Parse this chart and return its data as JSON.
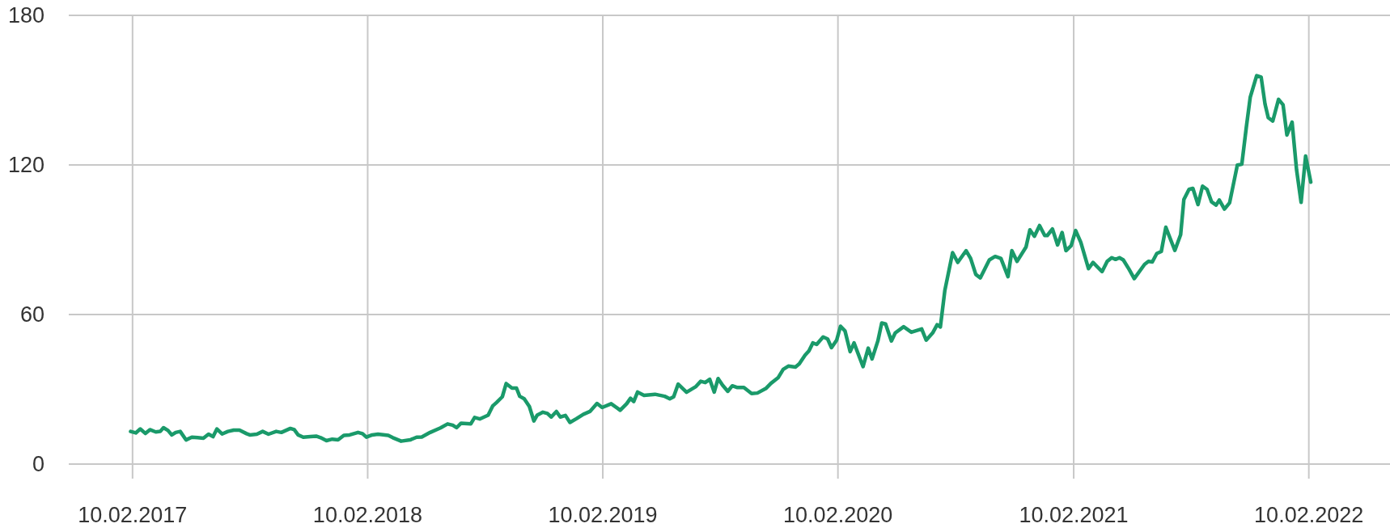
{
  "chart_data": {
    "type": "line",
    "xlim": [
      "2016-11-03",
      "2022-06-16"
    ],
    "ylim": [
      0,
      180
    ],
    "yticks": [
      0,
      60,
      120,
      180
    ],
    "xticks": [
      {
        "value": "2017-02-10",
        "label": "10.02.2017"
      },
      {
        "value": "2018-02-10",
        "label": "10.02.2018"
      },
      {
        "value": "2019-02-10",
        "label": "10.02.2019"
      },
      {
        "value": "2020-02-10",
        "label": "10.02.2020"
      },
      {
        "value": "2021-02-10",
        "label": "10.02.2021"
      },
      {
        "value": "2022-02-10",
        "label": "10.02.2022"
      }
    ],
    "grid": true,
    "marker": "none",
    "line_style": "solid",
    "series": [
      {
        "color": "#1a9a6a",
        "x": [
          "2017-02-07",
          "2017-02-15",
          "2017-02-22",
          "2017-03-02",
          "2017-03-09",
          "2017-03-18",
          "2017-03-25",
          "2017-03-30",
          "2017-04-06",
          "2017-04-12",
          "2017-04-18",
          "2017-04-25",
          "2017-05-04",
          "2017-05-13",
          "2017-05-22",
          "2017-05-31",
          "2017-06-08",
          "2017-06-15",
          "2017-06-21",
          "2017-06-29",
          "2017-07-08",
          "2017-07-17",
          "2017-07-26",
          "2017-08-06",
          "2017-08-11",
          "2017-08-22",
          "2017-08-31",
          "2017-09-09",
          "2017-09-21",
          "2017-09-29",
          "2017-10-06",
          "2017-10-13",
          "2017-10-19",
          "2017-10-25",
          "2017-11-02",
          "2017-11-13",
          "2017-11-22",
          "2017-11-29",
          "2017-12-08",
          "2017-12-17",
          "2017-12-26",
          "2018-01-04",
          "2018-01-13",
          "2018-01-26",
          "2018-02-02",
          "2018-02-08",
          "2018-02-17",
          "2018-02-26",
          "2018-03-14",
          "2018-03-21",
          "2018-04-03",
          "2018-04-17",
          "2018-04-27",
          "2018-05-05",
          "2018-05-18",
          "2018-06-03",
          "2018-06-14",
          "2018-06-22",
          "2018-06-28",
          "2018-07-05",
          "2018-07-20",
          "2018-07-26",
          "2018-08-03",
          "2018-08-16",
          "2018-08-23",
          "2018-08-29",
          "2018-09-07",
          "2018-09-13",
          "2018-09-22",
          "2018-09-29",
          "2018-10-04",
          "2018-10-11",
          "2018-10-19",
          "2018-10-26",
          "2018-10-31",
          "2018-11-09",
          "2018-11-16",
          "2018-11-22",
          "2018-11-30",
          "2018-12-06",
          "2018-12-14",
          "2018-12-21",
          "2018-12-31",
          "2019-01-11",
          "2019-01-21",
          "2019-02-01",
          "2019-02-09",
          "2019-02-23",
          "2019-03-09",
          "2019-03-19",
          "2019-03-25",
          "2019-03-30",
          "2019-04-05",
          "2019-04-15",
          "2019-05-02",
          "2019-05-17",
          "2019-05-25",
          "2019-05-31",
          "2019-06-07",
          "2019-06-20",
          "2019-07-04",
          "2019-07-12",
          "2019-07-19",
          "2019-07-26",
          "2019-08-02",
          "2019-08-08",
          "2019-08-15",
          "2019-08-23",
          "2019-08-30",
          "2019-09-07",
          "2019-09-17",
          "2019-09-29",
          "2019-10-08",
          "2019-10-21",
          "2019-10-29",
          "2019-11-09",
          "2019-11-17",
          "2019-11-25",
          "2019-12-06",
          "2019-12-12",
          "2019-12-21",
          "2019-12-27",
          "2020-01-02",
          "2020-01-08",
          "2020-01-18",
          "2020-01-25",
          "2020-01-31",
          "2020-02-08",
          "2020-02-14",
          "2020-02-21",
          "2020-02-29",
          "2020-03-06",
          "2020-03-20",
          "2020-03-28",
          "2020-04-03",
          "2020-04-12",
          "2020-04-18",
          "2020-04-24",
          "2020-05-03",
          "2020-05-09",
          "2020-05-22",
          "2020-06-03",
          "2020-06-19",
          "2020-06-26",
          "2020-07-06",
          "2020-07-13",
          "2020-07-18",
          "2020-07-25",
          "2020-08-06",
          "2020-08-14",
          "2020-08-27",
          "2020-09-03",
          "2020-09-11",
          "2020-09-18",
          "2020-10-02",
          "2020-10-11",
          "2020-10-20",
          "2020-10-31",
          "2020-11-06",
          "2020-11-14",
          "2020-11-28",
          "2020-12-04",
          "2020-12-11",
          "2020-12-19",
          "2020-12-27",
          "2020-12-31",
          "2021-01-08",
          "2021-01-16",
          "2021-01-23",
          "2021-01-29",
          "2021-02-06",
          "2021-02-13",
          "2021-02-21",
          "2021-03-05",
          "2021-03-12",
          "2021-03-26",
          "2021-04-03",
          "2021-04-10",
          "2021-04-16",
          "2021-04-22",
          "2021-04-28",
          "2021-05-07",
          "2021-05-15",
          "2021-05-31",
          "2021-06-06",
          "2021-06-12",
          "2021-06-19",
          "2021-06-26",
          "2021-07-03",
          "2021-07-17",
          "2021-07-26",
          "2021-07-31",
          "2021-08-08",
          "2021-08-14",
          "2021-08-22",
          "2021-08-29",
          "2021-09-05",
          "2021-09-12",
          "2021-09-19",
          "2021-09-24",
          "2021-10-02",
          "2021-10-10",
          "2021-10-22",
          "2021-10-29",
          "2021-11-05",
          "2021-11-11",
          "2021-11-21",
          "2021-11-28",
          "2021-12-04",
          "2021-12-09",
          "2021-12-16",
          "2021-12-25",
          "2022-01-01",
          "2022-01-07",
          "2022-01-15",
          "2022-01-22",
          "2022-01-29",
          "2022-02-05",
          "2022-02-13"
        ],
        "values": [
          13.1,
          12.5,
          14.1,
          12.3,
          13.8,
          12.9,
          13.1,
          14.6,
          13.5,
          11.7,
          12.7,
          13.1,
          9.7,
          10.8,
          10.6,
          10.4,
          12.0,
          11.0,
          14.1,
          12.1,
          13.1,
          13.6,
          13.6,
          12.2,
          11.7,
          12.0,
          13.1,
          12.0,
          13.1,
          12.7,
          13.5,
          14.3,
          13.8,
          11.7,
          10.8,
          11.0,
          11.2,
          10.6,
          9.4,
          10.0,
          9.7,
          11.5,
          11.7,
          12.7,
          12.2,
          10.8,
          11.7,
          12.0,
          11.5,
          10.6,
          9.2,
          9.7,
          10.8,
          10.9,
          12.7,
          14.5,
          16.1,
          15.6,
          14.6,
          16.4,
          16.1,
          18.7,
          18.1,
          19.6,
          23.3,
          24.7,
          27.0,
          32.3,
          30.5,
          30.5,
          27.2,
          26.2,
          23.1,
          17.3,
          19.6,
          20.8,
          20.3,
          18.9,
          21.1,
          18.9,
          19.5,
          16.7,
          18.2,
          20.0,
          21.1,
          24.3,
          22.7,
          24.2,
          21.6,
          24.2,
          26.4,
          25.1,
          28.9,
          27.6,
          28.0,
          27.2,
          26.2,
          27.0,
          32.1,
          28.8,
          31.0,
          33.2,
          32.7,
          34.0,
          28.9,
          34.3,
          31.6,
          29.2,
          31.4,
          30.7,
          30.7,
          28.3,
          28.5,
          30.3,
          32.4,
          34.6,
          38.0,
          39.3,
          38.9,
          40.2,
          43.7,
          45.4,
          48.6,
          48.0,
          51.0,
          50.2,
          46.7,
          49.7,
          55.3,
          53.4,
          45.1,
          48.6,
          39.1,
          46.5,
          42.2,
          49.4,
          56.6,
          56.2,
          49.4,
          52.6,
          55.1,
          52.9,
          54.2,
          49.7,
          52.6,
          55.9,
          55.0,
          69.7,
          84.8,
          80.9,
          85.6,
          82.5,
          76.1,
          74.7,
          81.9,
          83.3,
          82.5,
          75.2,
          85.6,
          81.3,
          87.1,
          94.0,
          91.4,
          95.7,
          91.7,
          91.7,
          94.3,
          87.9,
          92.9,
          85.6,
          87.6,
          93.7,
          89.0,
          78.4,
          80.9,
          77.2,
          81.3,
          82.8,
          82.1,
          82.8,
          81.9,
          78.1,
          74.4,
          80.1,
          81.3,
          81.1,
          84.5,
          85.3,
          95.0,
          85.7,
          92.0,
          106.1,
          110.2,
          110.6,
          104.1,
          111.5,
          110.2,
          105.2,
          103.9,
          105.9,
          102.3,
          104.8,
          119.9,
          120.3,
          135.2,
          147.1,
          155.8,
          155.2,
          144.4,
          139.0,
          137.6,
          146.3,
          144.1,
          132.0,
          137.2,
          118.0,
          105.0,
          123.6,
          113.1
        ]
      }
    ]
  }
}
